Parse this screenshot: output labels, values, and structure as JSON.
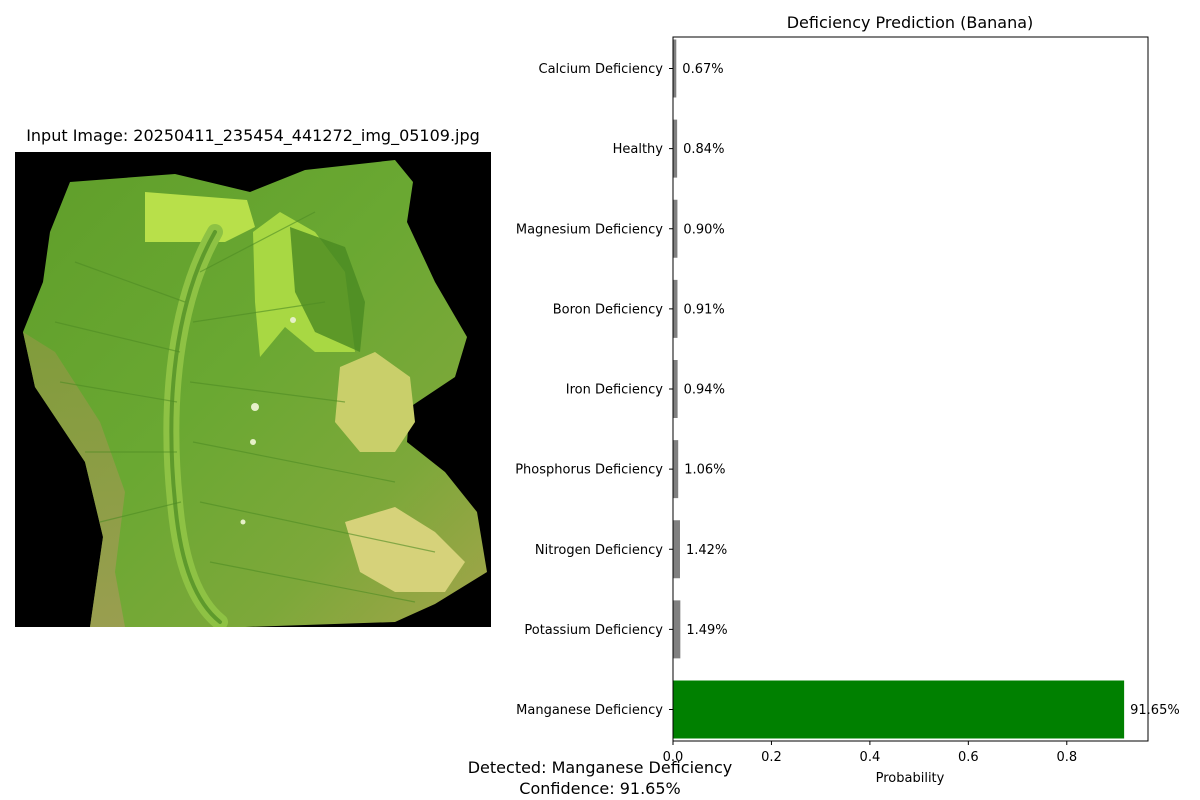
{
  "image_panel": {
    "title": "Input Image: 20250411_235454_441272_img_05109.jpg"
  },
  "chart_data": {
    "type": "bar",
    "orientation": "horizontal",
    "title": "Deficiency Prediction (Banana)",
    "xlabel": "Probability",
    "ylabel": "",
    "xlim": [
      0,
      0.965
    ],
    "xticks": [
      0.0,
      0.2,
      0.4,
      0.6,
      0.8
    ],
    "xtick_labels": [
      "0.0",
      "0.2",
      "0.4",
      "0.6",
      "0.8"
    ],
    "grid": false,
    "categories": [
      "Calcium Deficiency",
      "Healthy",
      "Magnesium Deficiency",
      "Boron Deficiency",
      "Iron Deficiency",
      "Phosphorus Deficiency",
      "Nitrogen Deficiency",
      "Potassium Deficiency",
      "Manganese Deficiency"
    ],
    "values": [
      0.0067,
      0.0084,
      0.009,
      0.0091,
      0.0094,
      0.0106,
      0.0142,
      0.0149,
      0.9165
    ],
    "value_labels": [
      "0.67%",
      "0.84%",
      "0.90%",
      "0.91%",
      "0.94%",
      "1.06%",
      "1.42%",
      "1.49%",
      "91.65%"
    ],
    "colors": [
      "#808080",
      "#808080",
      "#808080",
      "#808080",
      "#808080",
      "#808080",
      "#808080",
      "#808080",
      "#008000"
    ],
    "highlight_color": "#008000",
    "default_color": "#808080"
  },
  "caption": {
    "detected": "Detected: Manganese Deficiency",
    "confidence": "Confidence: 91.65%"
  }
}
